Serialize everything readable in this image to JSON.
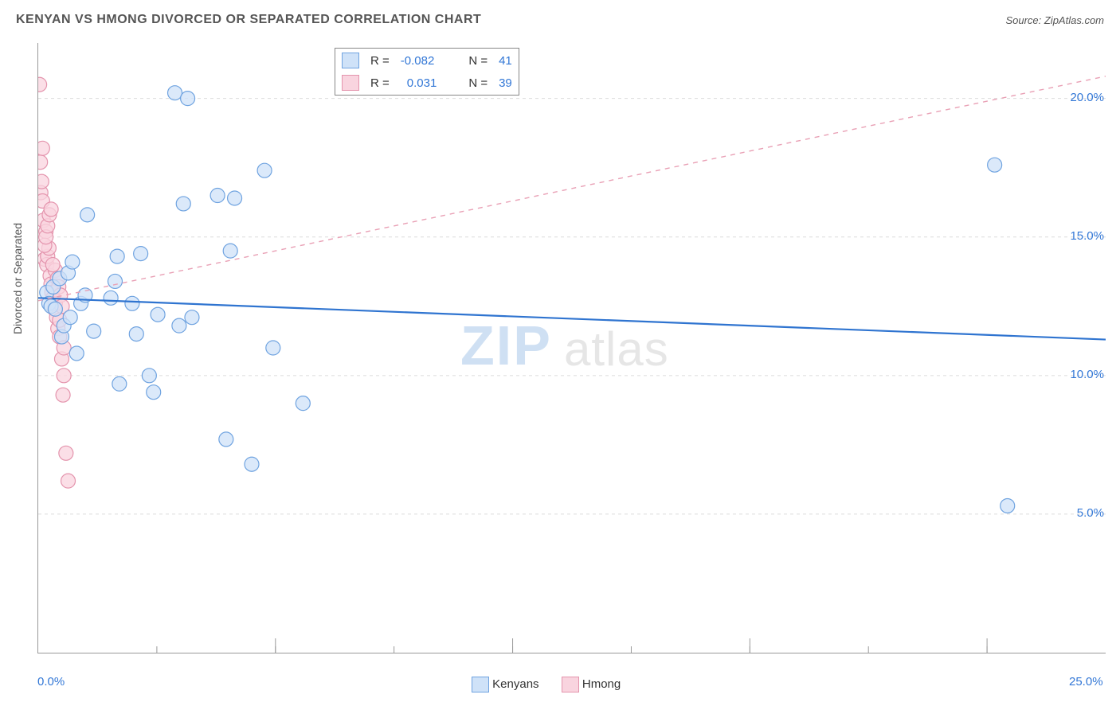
{
  "title": "KENYAN VS HMONG DIVORCED OR SEPARATED CORRELATION CHART",
  "source_label": "Source: ZipAtlas.com",
  "yaxis_label": "Divorced or Separated",
  "watermark_a": "ZIP",
  "watermark_b": "atlas",
  "chart": {
    "type": "scatter",
    "xlim": [
      0,
      25
    ],
    "ylim": [
      0,
      22
    ],
    "xtick_values": [
      0,
      25
    ],
    "xtick_labels": [
      "0.0%",
      "25.0%"
    ],
    "ytick_values": [
      5,
      10,
      15,
      20
    ],
    "ytick_labels": [
      "5.0%",
      "10.0%",
      "15.0%",
      "20.0%"
    ],
    "grid_color": "#dcdcdc",
    "minor_xticks": [
      2.778,
      5.556,
      8.333,
      11.111,
      13.889,
      16.667,
      19.444,
      22.222
    ],
    "series": [
      {
        "name": "Kenyans",
        "marker_fill": "#cfe2f8",
        "marker_stroke": "#6fa3e0",
        "marker_radius": 9,
        "fill_opacity": 0.75,
        "trend": {
          "y_at_x0": 12.8,
          "y_at_xmax": 11.3,
          "color": "#2f74d0",
          "width": 2.2,
          "dash": "none"
        },
        "R": "-0.082",
        "N": "41",
        "points": [
          [
            0.2,
            13.0
          ],
          [
            0.25,
            12.6
          ],
          [
            0.3,
            12.5
          ],
          [
            0.35,
            13.2
          ],
          [
            0.4,
            12.4
          ],
          [
            0.5,
            13.5
          ],
          [
            0.55,
            11.4
          ],
          [
            0.6,
            11.8
          ],
          [
            0.7,
            13.7
          ],
          [
            0.75,
            12.1
          ],
          [
            0.8,
            14.1
          ],
          [
            0.9,
            10.8
          ],
          [
            1.0,
            12.6
          ],
          [
            1.1,
            12.9
          ],
          [
            1.15,
            15.8
          ],
          [
            1.3,
            11.6
          ],
          [
            1.7,
            12.8
          ],
          [
            1.8,
            13.4
          ],
          [
            1.85,
            14.3
          ],
          [
            1.9,
            9.7
          ],
          [
            2.2,
            12.6
          ],
          [
            2.3,
            11.5
          ],
          [
            2.4,
            14.4
          ],
          [
            2.6,
            10.0
          ],
          [
            2.7,
            9.4
          ],
          [
            2.8,
            12.2
          ],
          [
            3.2,
            20.2
          ],
          [
            3.3,
            11.8
          ],
          [
            3.4,
            16.2
          ],
          [
            3.5,
            20.0
          ],
          [
            3.6,
            12.1
          ],
          [
            4.2,
            16.5
          ],
          [
            4.4,
            7.7
          ],
          [
            4.5,
            14.5
          ],
          [
            4.6,
            16.4
          ],
          [
            5.0,
            6.8
          ],
          [
            5.3,
            17.4
          ],
          [
            5.5,
            11.0
          ],
          [
            6.2,
            9.0
          ],
          [
            22.4,
            17.6
          ],
          [
            22.7,
            5.3
          ]
        ]
      },
      {
        "name": "Hmong",
        "marker_fill": "#f9d4df",
        "marker_stroke": "#e494ad",
        "marker_radius": 9,
        "fill_opacity": 0.75,
        "trend": {
          "y_at_x0": 12.7,
          "y_at_xmax": 20.8,
          "color": "#e9a0b5",
          "width": 1.4,
          "dash": "6,6"
        },
        "R": "0.031",
        "N": "39",
        "points": [
          [
            0.03,
            20.5
          ],
          [
            0.05,
            17.7
          ],
          [
            0.06,
            16.6
          ],
          [
            0.1,
            16.3
          ],
          [
            0.12,
            15.6
          ],
          [
            0.15,
            14.2
          ],
          [
            0.18,
            15.2
          ],
          [
            0.2,
            14.0
          ],
          [
            0.22,
            14.3
          ],
          [
            0.25,
            14.6
          ],
          [
            0.28,
            13.6
          ],
          [
            0.3,
            13.3
          ],
          [
            0.32,
            13.0
          ],
          [
            0.35,
            12.8
          ],
          [
            0.38,
            12.4
          ],
          [
            0.4,
            12.6
          ],
          [
            0.43,
            12.1
          ],
          [
            0.46,
            11.7
          ],
          [
            0.5,
            11.4
          ],
          [
            0.55,
            10.6
          ],
          [
            0.58,
            9.3
          ],
          [
            0.6,
            10.0
          ],
          [
            0.65,
            7.2
          ],
          [
            0.7,
            6.2
          ],
          [
            0.4,
            13.8
          ],
          [
            0.45,
            13.5
          ],
          [
            0.48,
            13.2
          ],
          [
            0.52,
            12.9
          ],
          [
            0.56,
            12.5
          ],
          [
            0.15,
            14.7
          ],
          [
            0.18,
            15.0
          ],
          [
            0.22,
            15.4
          ],
          [
            0.26,
            15.8
          ],
          [
            0.3,
            16.0
          ],
          [
            0.34,
            14.0
          ],
          [
            0.1,
            18.2
          ],
          [
            0.08,
            17.0
          ],
          [
            0.6,
            11.0
          ],
          [
            0.5,
            12.0
          ]
        ]
      }
    ]
  },
  "legend_bottom": [
    "Kenyans",
    "Hmong"
  ],
  "legend_top_labels": {
    "R": "R =",
    "N": "N ="
  }
}
